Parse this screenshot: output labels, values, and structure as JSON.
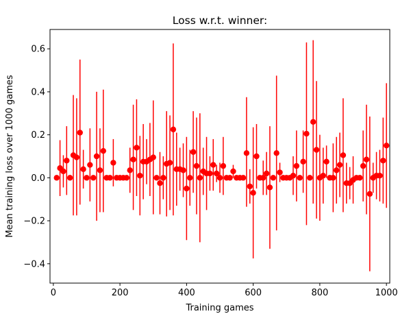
{
  "chart_data": {
    "type": "scatter",
    "title": "Loss w.r.t. winner:",
    "xlabel": "Training games",
    "ylabel": "Mean training loss over 1000 games",
    "xlim": [
      -10,
      1010
    ],
    "ylim": [
      -0.49,
      0.69
    ],
    "xticks": [
      0,
      200,
      400,
      600,
      800,
      1000
    ],
    "yticks": [
      -0.4,
      -0.2,
      0.0,
      0.2,
      0.4,
      0.6
    ],
    "xtick_labels": [
      "0",
      "200",
      "400",
      "600",
      "800",
      "1000"
    ],
    "ytick_labels": [
      "−0.4",
      "−0.2",
      "0.0",
      "0.2",
      "0.4",
      "0.6"
    ],
    "grid": false,
    "legend": "none",
    "series": [
      {
        "color": "#ff0000",
        "marker": "circle",
        "error_bars": "vertical",
        "points": [
          {
            "x": 10,
            "y": 0.0,
            "lo": 0.0,
            "hi": 0.0
          },
          {
            "x": 20,
            "y": 0.045,
            "lo": -0.085,
            "hi": 0.175
          },
          {
            "x": 30,
            "y": 0.03,
            "lo": -0.045,
            "hi": 0.105
          },
          {
            "x": 40,
            "y": 0.08,
            "lo": -0.08,
            "hi": 0.24
          },
          {
            "x": 50,
            "y": 0.0,
            "lo": 0.0,
            "hi": 0.0
          },
          {
            "x": 60,
            "y": 0.105,
            "lo": -0.175,
            "hi": 0.385
          },
          {
            "x": 70,
            "y": 0.095,
            "lo": -0.175,
            "hi": 0.37
          },
          {
            "x": 80,
            "y": 0.21,
            "lo": -0.125,
            "hi": 0.55
          },
          {
            "x": 90,
            "y": 0.04,
            "lo": -0.05,
            "hi": 0.13
          },
          {
            "x": 100,
            "y": 0.0,
            "lo": 0.0,
            "hi": 0.0
          },
          {
            "x": 110,
            "y": 0.06,
            "lo": -0.11,
            "hi": 0.23
          },
          {
            "x": 120,
            "y": 0.0,
            "lo": 0.0,
            "hi": 0.0
          },
          {
            "x": 130,
            "y": 0.1,
            "lo": -0.2,
            "hi": 0.4
          },
          {
            "x": 140,
            "y": 0.035,
            "lo": -0.16,
            "hi": 0.23
          },
          {
            "x": 150,
            "y": 0.125,
            "lo": -0.16,
            "hi": 0.41
          },
          {
            "x": 160,
            "y": 0.0,
            "lo": 0.0,
            "hi": 0.0
          },
          {
            "x": 170,
            "y": 0.0,
            "lo": 0.0,
            "hi": 0.0
          },
          {
            "x": 180,
            "y": 0.07,
            "lo": -0.04,
            "hi": 0.18
          },
          {
            "x": 190,
            "y": 0.0,
            "lo": 0.0,
            "hi": 0.0
          },
          {
            "x": 200,
            "y": 0.0,
            "lo": 0.0,
            "hi": 0.0
          },
          {
            "x": 210,
            "y": 0.0,
            "lo": 0.0,
            "hi": 0.0
          },
          {
            "x": 220,
            "y": 0.0,
            "lo": 0.0,
            "hi": 0.0
          },
          {
            "x": 230,
            "y": 0.035,
            "lo": -0.07,
            "hi": 0.14
          },
          {
            "x": 240,
            "y": 0.085,
            "lo": -0.15,
            "hi": 0.34
          },
          {
            "x": 250,
            "y": 0.14,
            "lo": -0.085,
            "hi": 0.365
          },
          {
            "x": 260,
            "y": 0.01,
            "lo": -0.175,
            "hi": 0.195
          },
          {
            "x": 270,
            "y": 0.075,
            "lo": -0.1,
            "hi": 0.25
          },
          {
            "x": 280,
            "y": 0.075,
            "lo": -0.03,
            "hi": 0.18
          },
          {
            "x": 290,
            "y": 0.085,
            "lo": -0.085,
            "hi": 0.255
          },
          {
            "x": 300,
            "y": 0.095,
            "lo": -0.17,
            "hi": 0.36
          },
          {
            "x": 310,
            "y": 0.0,
            "lo": 0.0,
            "hi": 0.0
          },
          {
            "x": 320,
            "y": -0.025,
            "lo": -0.17,
            "hi": 0.12
          },
          {
            "x": 330,
            "y": 0.0,
            "lo": -0.1,
            "hi": 0.1
          },
          {
            "x": 340,
            "y": 0.065,
            "lo": -0.18,
            "hi": 0.31
          },
          {
            "x": 350,
            "y": 0.07,
            "lo": -0.15,
            "hi": 0.29
          },
          {
            "x": 360,
            "y": 0.225,
            "lo": -0.175,
            "hi": 0.625
          },
          {
            "x": 370,
            "y": 0.04,
            "lo": -0.13,
            "hi": 0.21
          },
          {
            "x": 380,
            "y": 0.04,
            "lo": -0.06,
            "hi": 0.14
          },
          {
            "x": 390,
            "y": 0.035,
            "lo": -0.09,
            "hi": 0.16
          },
          {
            "x": 400,
            "y": -0.05,
            "lo": -0.29,
            "hi": 0.19
          },
          {
            "x": 410,
            "y": 0.0,
            "lo": -0.13,
            "hi": 0.13
          },
          {
            "x": 420,
            "y": 0.12,
            "lo": -0.07,
            "hi": 0.31
          },
          {
            "x": 430,
            "y": 0.055,
            "lo": -0.17,
            "hi": 0.28
          },
          {
            "x": 440,
            "y": 0.0,
            "lo": -0.3,
            "hi": 0.3
          },
          {
            "x": 450,
            "y": 0.03,
            "lo": -0.08,
            "hi": 0.14
          },
          {
            "x": 460,
            "y": 0.02,
            "lo": -0.15,
            "hi": 0.19
          },
          {
            "x": 470,
            "y": 0.02,
            "lo": -0.06,
            "hi": 0.1
          },
          {
            "x": 480,
            "y": 0.06,
            "lo": -0.06,
            "hi": 0.18
          },
          {
            "x": 490,
            "y": 0.02,
            "lo": -0.02,
            "hi": 0.06
          },
          {
            "x": 500,
            "y": 0.0,
            "lo": -0.07,
            "hi": 0.07
          },
          {
            "x": 510,
            "y": 0.055,
            "lo": -0.08,
            "hi": 0.19
          },
          {
            "x": 520,
            "y": 0.0,
            "lo": 0.0,
            "hi": 0.0
          },
          {
            "x": 530,
            "y": 0.0,
            "lo": 0.0,
            "hi": 0.0
          },
          {
            "x": 540,
            "y": 0.03,
            "lo": 0.0,
            "hi": 0.06
          },
          {
            "x": 550,
            "y": 0.0,
            "lo": 0.0,
            "hi": 0.0
          },
          {
            "x": 560,
            "y": 0.0,
            "lo": 0.0,
            "hi": 0.0
          },
          {
            "x": 570,
            "y": 0.0,
            "lo": 0.0,
            "hi": 0.0
          },
          {
            "x": 580,
            "y": 0.115,
            "lo": -0.135,
            "hi": 0.375
          },
          {
            "x": 590,
            "y": -0.04,
            "lo": -0.12,
            "hi": 0.04
          },
          {
            "x": 600,
            "y": -0.07,
            "lo": -0.375,
            "hi": 0.235
          },
          {
            "x": 610,
            "y": 0.1,
            "lo": -0.05,
            "hi": 0.25
          },
          {
            "x": 620,
            "y": 0.0,
            "lo": 0.0,
            "hi": 0.0
          },
          {
            "x": 630,
            "y": 0.0,
            "lo": -0.08,
            "hi": 0.08
          },
          {
            "x": 640,
            "y": 0.02,
            "lo": -0.08,
            "hi": 0.12
          },
          {
            "x": 650,
            "y": -0.045,
            "lo": -0.33,
            "hi": 0.24
          },
          {
            "x": 660,
            "y": 0.0,
            "lo": 0.0,
            "hi": 0.0
          },
          {
            "x": 670,
            "y": 0.115,
            "lo": -0.245,
            "hi": 0.475
          },
          {
            "x": 680,
            "y": 0.025,
            "lo": -0.02,
            "hi": 0.07
          },
          {
            "x": 690,
            "y": 0.0,
            "lo": 0.0,
            "hi": 0.0
          },
          {
            "x": 700,
            "y": 0.0,
            "lo": 0.0,
            "hi": 0.0
          },
          {
            "x": 710,
            "y": 0.0,
            "lo": 0.0,
            "hi": 0.0
          },
          {
            "x": 720,
            "y": 0.01,
            "lo": -0.08,
            "hi": 0.1
          },
          {
            "x": 730,
            "y": 0.055,
            "lo": -0.11,
            "hi": 0.22
          },
          {
            "x": 740,
            "y": 0.0,
            "lo": 0.0,
            "hi": 0.0
          },
          {
            "x": 750,
            "y": 0.075,
            "lo": -0.07,
            "hi": 0.22
          },
          {
            "x": 760,
            "y": 0.205,
            "lo": -0.22,
            "hi": 0.63
          },
          {
            "x": 770,
            "y": 0.0,
            "lo": 0.0,
            "hi": 0.0
          },
          {
            "x": 780,
            "y": 0.26,
            "lo": -0.12,
            "hi": 0.64
          },
          {
            "x": 790,
            "y": 0.13,
            "lo": -0.19,
            "hi": 0.45
          },
          {
            "x": 800,
            "y": 0.0,
            "lo": -0.2,
            "hi": 0.2
          },
          {
            "x": 810,
            "y": 0.01,
            "lo": -0.12,
            "hi": 0.14
          },
          {
            "x": 820,
            "y": 0.075,
            "lo": 0.0,
            "hi": 0.15
          },
          {
            "x": 830,
            "y": 0.0,
            "lo": 0.0,
            "hi": 0.0
          },
          {
            "x": 840,
            "y": 0.0,
            "lo": -0.16,
            "hi": 0.16
          },
          {
            "x": 850,
            "y": 0.035,
            "lo": -0.12,
            "hi": 0.19
          },
          {
            "x": 860,
            "y": 0.06,
            "lo": -0.09,
            "hi": 0.21
          },
          {
            "x": 870,
            "y": 0.105,
            "lo": -0.16,
            "hi": 0.37
          },
          {
            "x": 880,
            "y": -0.025,
            "lo": -0.12,
            "hi": 0.07
          },
          {
            "x": 890,
            "y": -0.025,
            "lo": -0.1,
            "hi": 0.05
          },
          {
            "x": 900,
            "y": -0.01,
            "lo": -0.12,
            "hi": 0.1
          },
          {
            "x": 910,
            "y": 0.0,
            "lo": 0.0,
            "hi": 0.0
          },
          {
            "x": 920,
            "y": 0.0,
            "lo": 0.0,
            "hi": 0.0
          },
          {
            "x": 930,
            "y": 0.055,
            "lo": -0.11,
            "hi": 0.22
          },
          {
            "x": 940,
            "y": 0.085,
            "lo": -0.17,
            "hi": 0.34
          },
          {
            "x": 950,
            "y": -0.075,
            "lo": -0.435,
            "hi": 0.285
          },
          {
            "x": 960,
            "y": 0.0,
            "lo": -0.07,
            "hi": 0.07
          },
          {
            "x": 970,
            "y": 0.01,
            "lo": -0.1,
            "hi": 0.12
          },
          {
            "x": 980,
            "y": 0.01,
            "lo": -0.11,
            "hi": 0.13
          },
          {
            "x": 990,
            "y": 0.08,
            "lo": -0.12,
            "hi": 0.28
          },
          {
            "x": 1000,
            "y": 0.15,
            "lo": -0.14,
            "hi": 0.44
          }
        ]
      }
    ]
  }
}
